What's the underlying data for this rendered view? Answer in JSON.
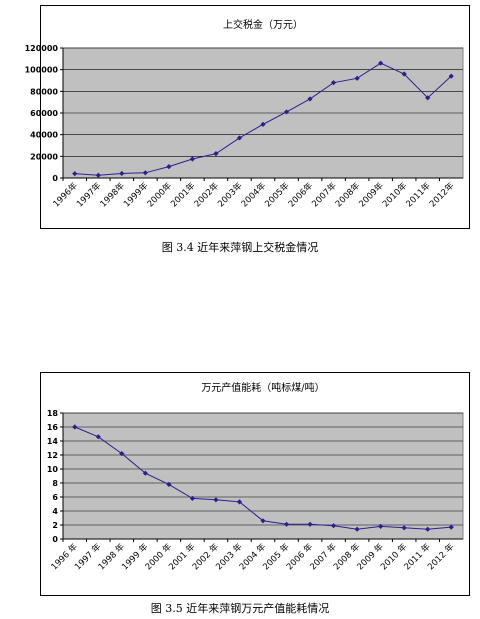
{
  "chart_data": [
    {
      "type": "line",
      "title": "上交税金（万元）",
      "categories": [
        "1996年",
        "1997年",
        "1998年",
        "1999年",
        "2000年",
        "2001年",
        "2002年",
        "2003年",
        "2004年",
        "2005年",
        "2006年",
        "2007年",
        "2008年",
        "2009年",
        "2010年",
        "2011年",
        "2012年"
      ],
      "series": [
        {
          "values": [
            4000,
            2500,
            4200,
            4800,
            10500,
            17500,
            22500,
            37000,
            49500,
            61000,
            73000,
            88000,
            92000,
            106000,
            96000,
            74000,
            94000
          ]
        }
      ],
      "yticks": [
        "0",
        "20000",
        "40000",
        "60000",
        "80000",
        "100000",
        "120000"
      ],
      "ylim": [
        0,
        120000
      ],
      "xlabel": "",
      "ylabel": "",
      "grid": true,
      "colors": {
        "line": "#2b1f8f",
        "plot_bg": "#c0c0c0"
      }
    },
    {
      "type": "line",
      "title": "万元产值能耗（吨标煤/吨）",
      "categories": [
        "1996 年",
        "1997 年",
        "1998 年",
        "1999 年",
        "2000 年",
        "2001 年",
        "2002 年",
        "2003 年",
        "2004 年",
        "2005 年",
        "2006 年",
        "2007 年",
        "2008 年",
        "2009 年",
        "2010 年",
        "2011 年",
        "2012 年"
      ],
      "series": [
        {
          "values": [
            16,
            14.6,
            12.2,
            9.4,
            7.8,
            5.8,
            5.6,
            5.3,
            2.6,
            2.1,
            2.1,
            1.9,
            1.4,
            1.8,
            1.6,
            1.4,
            1.7
          ]
        }
      ],
      "yticks": [
        "0",
        "2",
        "4",
        "6",
        "8",
        "10",
        "12",
        "14",
        "16",
        "18"
      ],
      "ylim": [
        0,
        18
      ],
      "xlabel": "",
      "ylabel": "",
      "grid": true,
      "colors": {
        "line": "#2b1f8f",
        "plot_bg": "#c0c0c0"
      }
    }
  ],
  "captions": {
    "fig1": "图 3.4  近年来萍钢上交税金情况",
    "fig2": "图 3.5  近年来萍钢万元产值能耗情况"
  }
}
